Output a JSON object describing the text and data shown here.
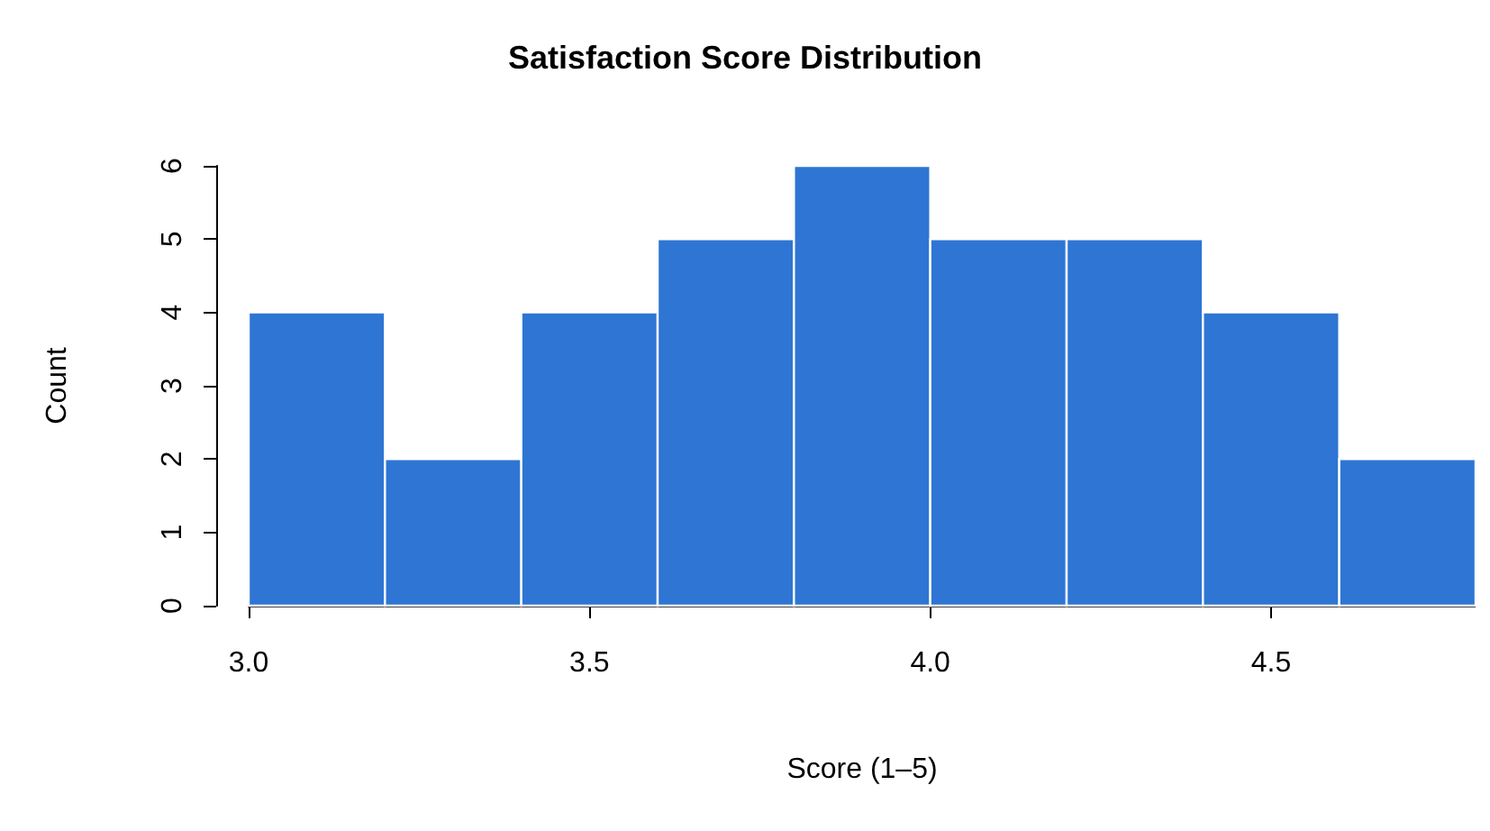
{
  "chart_data": {
    "type": "histogram",
    "title": "Satisfaction Score Distribution",
    "xlabel": "Score (1–5)",
    "ylabel": "Count",
    "bins": [
      3.0,
      3.2,
      3.4,
      3.6,
      3.8,
      4.0,
      4.2,
      4.4,
      4.6,
      4.8
    ],
    "values": [
      4,
      2,
      4,
      5,
      6,
      5,
      5,
      4,
      2
    ],
    "color": "#2e75d4",
    "xlim": [
      3.0,
      4.8
    ],
    "xticks": [
      {
        "value": 3.0,
        "label": "3.0"
      },
      {
        "value": 3.5,
        "label": "3.5"
      },
      {
        "value": 4.0,
        "label": "4.0"
      },
      {
        "value": 4.5,
        "label": "4.5"
      }
    ],
    "ylim": [
      0,
      6
    ],
    "yticks": [
      0,
      1,
      2,
      3,
      4,
      5,
      6
    ],
    "grid": false
  }
}
